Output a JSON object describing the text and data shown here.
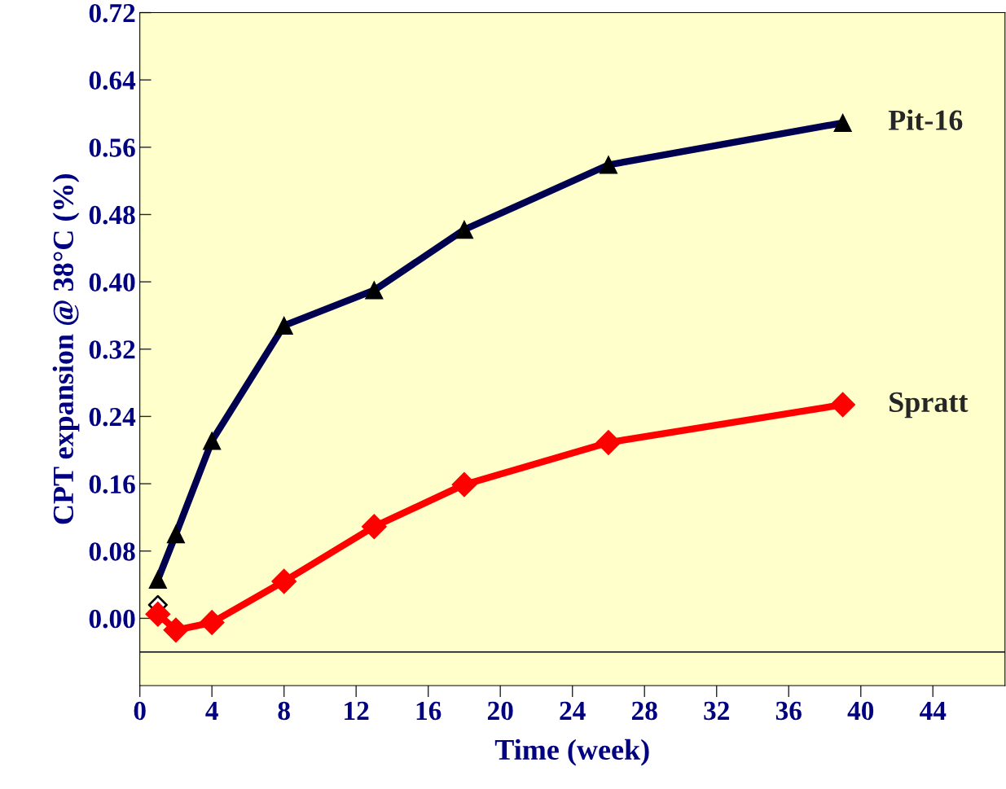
{
  "chart_data": {
    "type": "line",
    "xlabel": "Time (week)",
    "ylabel": "CPT expansion @ 38°C (%)",
    "xlim": [
      0,
      48
    ],
    "xticks": [
      0,
      4,
      8,
      12,
      16,
      20,
      24,
      28,
      32,
      36,
      40,
      44
    ],
    "ylim": [
      -0.08,
      0.72
    ],
    "yticks": [
      {
        "value": 0,
        "label": "0.00"
      },
      {
        "value": 0.08,
        "label": "0.08"
      },
      {
        "value": 0.16,
        "label": "0.16"
      },
      {
        "value": 0.24,
        "label": "0.24"
      },
      {
        "value": 0.32,
        "label": "0.32"
      },
      {
        "value": 0.4,
        "label": "0.40"
      },
      {
        "value": 0.48,
        "label": "0.48"
      },
      {
        "value": 0.56,
        "label": "0.56"
      },
      {
        "value": 0.64,
        "label": "0.64"
      },
      {
        "value": 0.72,
        "label": "0.72"
      }
    ],
    "x": [
      1,
      2,
      4,
      8,
      13,
      18,
      26,
      39
    ],
    "series": [
      {
        "name": "Pit-16",
        "color": "#000050",
        "marker": "triangle",
        "values": [
          0.046,
          0.1,
          0.211,
          0.348,
          0.39,
          0.462,
          0.539,
          0.589
        ]
      },
      {
        "name": "Spratt",
        "color": "#ff0000",
        "marker": "diamond",
        "values": [
          0.005,
          -0.014,
          -0.005,
          0.044,
          0.109,
          0.159,
          0.209,
          0.254
        ]
      },
      {
        "type": "scatter",
        "color": "#000000",
        "marker": "diamond",
        "x": [
          1
        ],
        "values": [
          0.016
        ]
      }
    ],
    "ref_lines": [
      {
        "axis": "y",
        "value": -0.04,
        "color": "#000000"
      }
    ],
    "legend": false,
    "grid": false
  }
}
